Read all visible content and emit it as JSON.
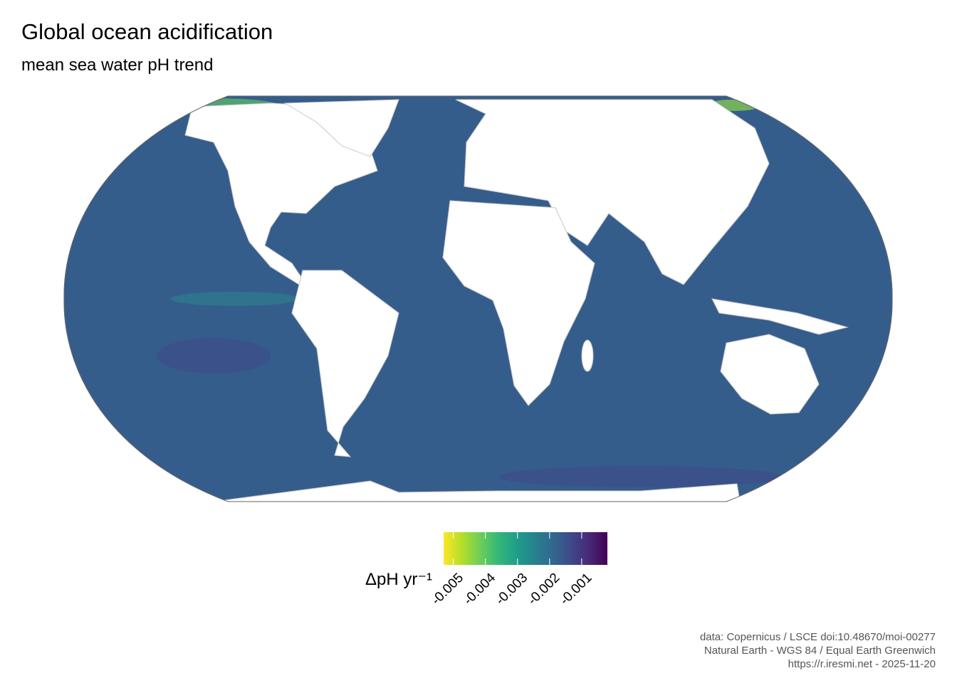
{
  "title": "Global ocean acidification",
  "subtitle": "mean sea water pH trend",
  "legend": {
    "title": "ΔpH yr⁻¹",
    "lim": [
      -0.0053,
      -0.0002
    ],
    "ticks": [
      -0.005,
      -0.004,
      -0.003,
      -0.002,
      -0.001
    ],
    "colors": [
      "#fde725",
      "#b5de2b",
      "#6ece58",
      "#35b779",
      "#1f9e89",
      "#26828e",
      "#31688e",
      "#3e4989",
      "#482878",
      "#440154"
    ]
  },
  "caption": [
    "data: Copernicus / LSCE doi:10.48670/moi-00277",
    "Natural Earth - WGS 84 / Equal Earth Greenwich",
    "https://r.iresmi.net - 2025-11-20"
  ]
}
